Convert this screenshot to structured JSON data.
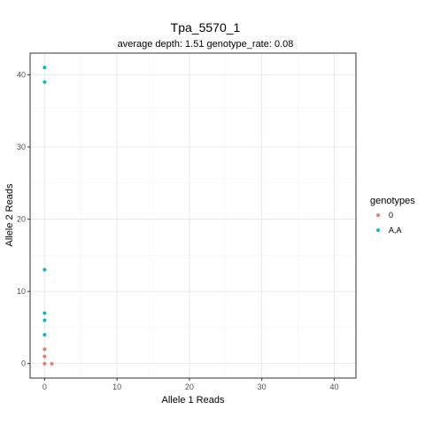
{
  "chart_data": {
    "type": "scatter",
    "title": "Tpa_5570_1",
    "subtitle": "average depth:  1.51  genotype_rate:  0.08",
    "xlabel": "Allele 1 Reads",
    "ylabel": "Allele 2 Reads",
    "xlim": [
      -2,
      43
    ],
    "ylim": [
      -2,
      43
    ],
    "xticks": [
      0,
      10,
      20,
      30,
      40
    ],
    "yticks": [
      0,
      10,
      20,
      30,
      40
    ],
    "grid": true,
    "legend": {
      "title": "genotypes",
      "position": "right"
    },
    "series": [
      {
        "name": "0",
        "color": "#F8766D",
        "points": [
          [
            0,
            0
          ],
          [
            1,
            0
          ],
          [
            0,
            1
          ],
          [
            0,
            2
          ]
        ]
      },
      {
        "name": "A,A",
        "color": "#00BFC4",
        "points": [
          [
            0,
            4
          ],
          [
            0,
            6
          ],
          [
            0,
            7
          ],
          [
            0,
            13
          ],
          [
            0,
            39
          ],
          [
            0,
            41
          ]
        ]
      }
    ]
  }
}
